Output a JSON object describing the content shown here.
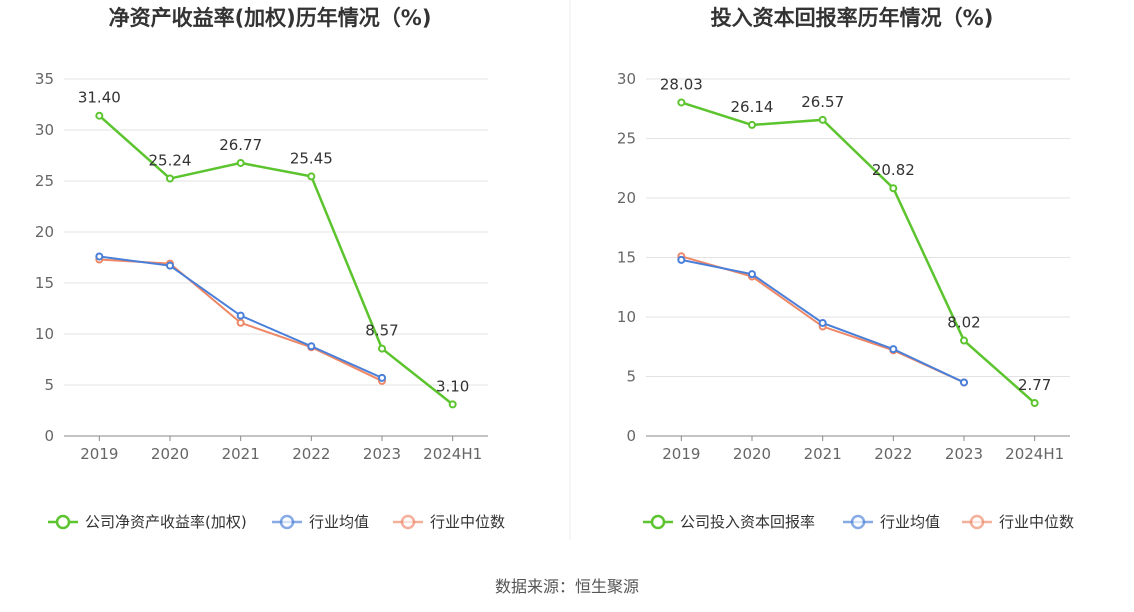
{
  "source": "数据来源：恒生聚源",
  "colors": {
    "company": "#5cc42e",
    "industry_avg": "#4a7fd9",
    "industry_median": "#ee8766",
    "grid": "#e3e3e3",
    "axis": "#888888",
    "divider": "#eeeeee"
  },
  "chart_data": [
    {
      "type": "line",
      "title": "净资产收益率(加权)历年情况（%)",
      "categories": [
        "2019",
        "2020",
        "2021",
        "2022",
        "2023",
        "2024H1"
      ],
      "ylim": [
        0,
        35
      ],
      "yticks": [
        0,
        5,
        10,
        15,
        20,
        25,
        30,
        35
      ],
      "grid": true,
      "legend_position": "bottom",
      "series": [
        {
          "name": "公司净资产收益率(加权)",
          "color_key": "company",
          "values": [
            31.4,
            25.24,
            26.77,
            25.45,
            8.57,
            3.1
          ],
          "labels": [
            "31.40",
            "25.24",
            "26.77",
            "25.45",
            "8.57",
            "3.10"
          ]
        },
        {
          "name": "行业均值",
          "color_key": "industry_avg",
          "values": [
            17.6,
            16.7,
            11.8,
            8.8,
            5.7,
            null
          ]
        },
        {
          "name": "行业中位数",
          "color_key": "industry_median",
          "values": [
            17.3,
            16.9,
            11.1,
            8.7,
            5.4,
            null
          ]
        }
      ]
    },
    {
      "type": "line",
      "title": "投入资本回报率历年情况（%)",
      "categories": [
        "2019",
        "2020",
        "2021",
        "2022",
        "2023",
        "2024H1"
      ],
      "ylim": [
        0,
        30
      ],
      "yticks": [
        0,
        5,
        10,
        15,
        20,
        25,
        30
      ],
      "grid": true,
      "legend_position": "bottom",
      "series": [
        {
          "name": "公司投入资本回报率",
          "color_key": "company",
          "values": [
            28.03,
            26.14,
            26.57,
            20.82,
            8.02,
            2.77
          ],
          "labels": [
            "28.03",
            "26.14",
            "26.57",
            "20.82",
            "8.02",
            "2.77"
          ]
        },
        {
          "name": "行业均值",
          "color_key": "industry_avg",
          "values": [
            14.8,
            13.6,
            9.5,
            7.3,
            4.5,
            null
          ]
        },
        {
          "name": "行业中位数",
          "color_key": "industry_median",
          "values": [
            15.1,
            13.4,
            9.2,
            7.2,
            4.5,
            null
          ]
        }
      ]
    }
  ]
}
